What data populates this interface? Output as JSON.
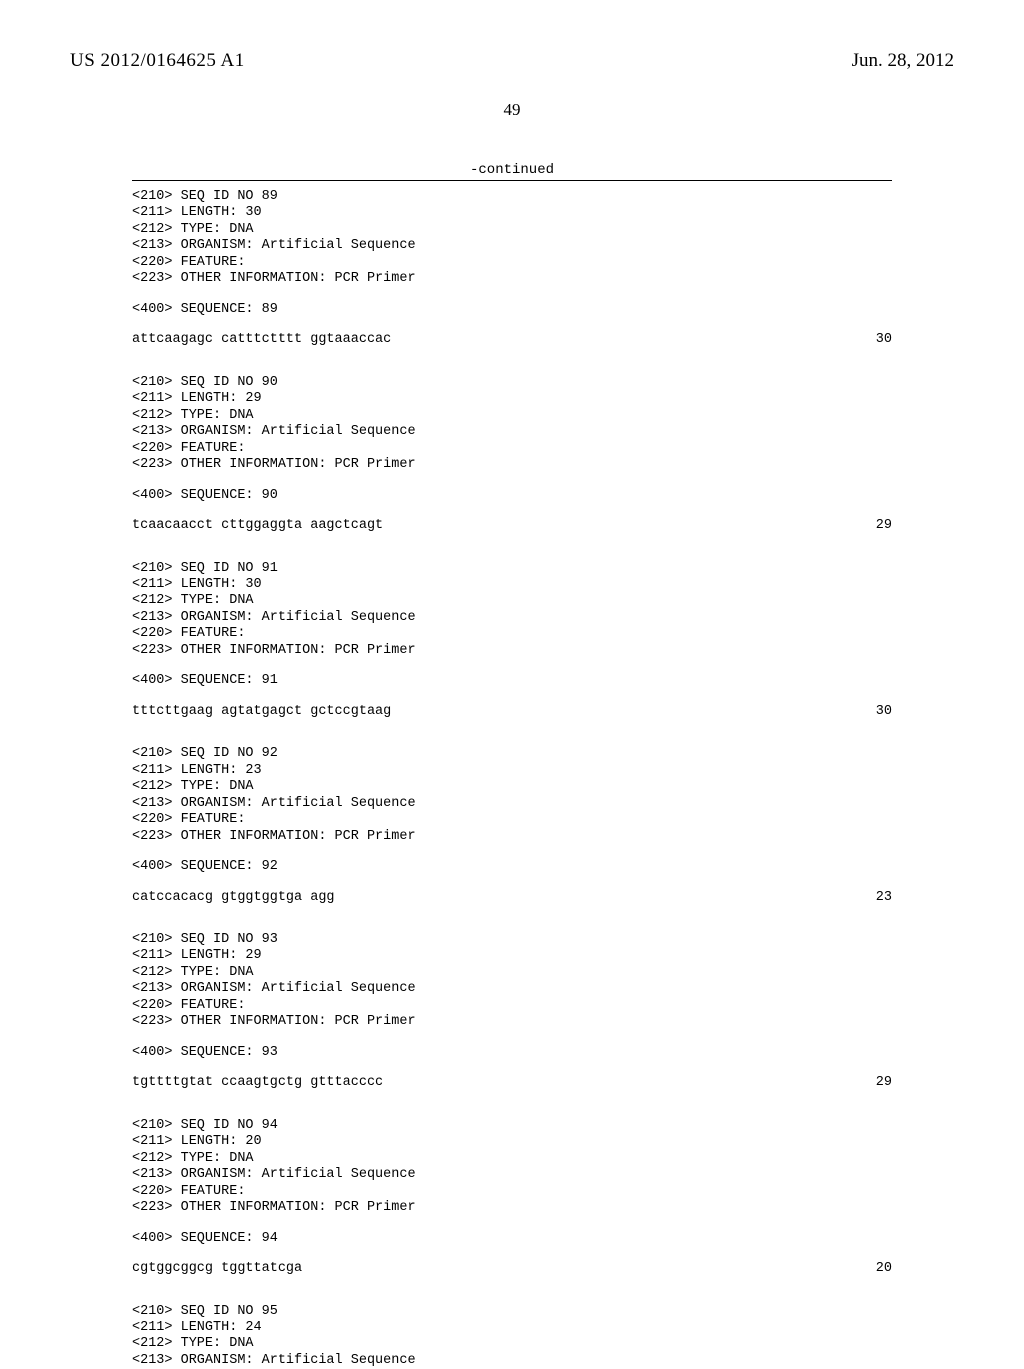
{
  "header": {
    "publication_number": "US 2012/0164625 A1",
    "publication_date": "Jun. 28, 2012"
  },
  "page_number": "49",
  "continued_label": "-continued",
  "entries": [
    {
      "meta": [
        "<210> SEQ ID NO 89",
        "<211> LENGTH: 30",
        "<212> TYPE: DNA",
        "<213> ORGANISM: Artificial Sequence",
        "<220> FEATURE:",
        "<223> OTHER INFORMATION: PCR Primer"
      ],
      "query": "<400> SEQUENCE: 89",
      "sequence": "attcaagagc catttctttt ggtaaaccac",
      "length": "30"
    },
    {
      "meta": [
        "<210> SEQ ID NO 90",
        "<211> LENGTH: 29",
        "<212> TYPE: DNA",
        "<213> ORGANISM: Artificial Sequence",
        "<220> FEATURE:",
        "<223> OTHER INFORMATION: PCR Primer"
      ],
      "query": "<400> SEQUENCE: 90",
      "sequence": "tcaacaacct cttggaggta aagctcagt",
      "length": "29"
    },
    {
      "meta": [
        "<210> SEQ ID NO 91",
        "<211> LENGTH: 30",
        "<212> TYPE: DNA",
        "<213> ORGANISM: Artificial Sequence",
        "<220> FEATURE:",
        "<223> OTHER INFORMATION: PCR Primer"
      ],
      "query": "<400> SEQUENCE: 91",
      "sequence": "tttcttgaag agtatgagct gctccgtaag",
      "length": "30"
    },
    {
      "meta": [
        "<210> SEQ ID NO 92",
        "<211> LENGTH: 23",
        "<212> TYPE: DNA",
        "<213> ORGANISM: Artificial Sequence",
        "<220> FEATURE:",
        "<223> OTHER INFORMATION: PCR Primer"
      ],
      "query": "<400> SEQUENCE: 92",
      "sequence": "catccacacg gtggtggtga agg",
      "length": "23"
    },
    {
      "meta": [
        "<210> SEQ ID NO 93",
        "<211> LENGTH: 29",
        "<212> TYPE: DNA",
        "<213> ORGANISM: Artificial Sequence",
        "<220> FEATURE:",
        "<223> OTHER INFORMATION: PCR Primer"
      ],
      "query": "<400> SEQUENCE: 93",
      "sequence": "tgttttgtat ccaagtgctg gtttacccc",
      "length": "29"
    },
    {
      "meta": [
        "<210> SEQ ID NO 94",
        "<211> LENGTH: 20",
        "<212> TYPE: DNA",
        "<213> ORGANISM: Artificial Sequence",
        "<220> FEATURE:",
        "<223> OTHER INFORMATION: PCR Primer"
      ],
      "query": "<400> SEQUENCE: 94",
      "sequence": "cgtggcggcg tggttatcga",
      "length": "20"
    },
    {
      "meta": [
        "<210> SEQ ID NO 95",
        "<211> LENGTH: 24",
        "<212> TYPE: DNA",
        "<213> ORGANISM: Artificial Sequence"
      ],
      "query": "",
      "sequence": "",
      "length": ""
    }
  ]
}
